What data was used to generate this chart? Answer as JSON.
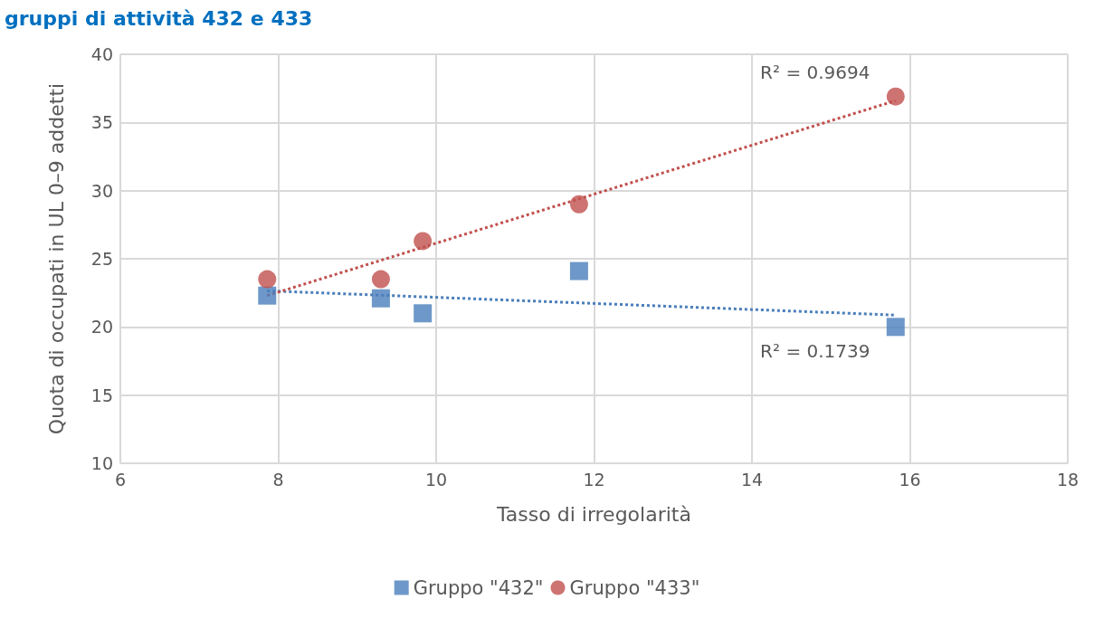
{
  "chart_data": {
    "type": "scatter",
    "title": "gruppi di attività 432 e 433",
    "xlabel": "Tasso di irregolarità",
    "ylabel": "Quota di occupati in UL 0–9 addetti",
    "xlim": [
      6,
      18
    ],
    "xticks": [
      6,
      8,
      10,
      12,
      14,
      16,
      18
    ],
    "ylim": [
      10,
      40
    ],
    "yticks": [
      10,
      15,
      20,
      25,
      30,
      35,
      40
    ],
    "grid": true,
    "legend": "bottom",
    "series": [
      {
        "name": "Gruppo \"432\"",
        "color": "#4a7ebb",
        "marker": "square",
        "x": [
          7.86,
          9.3,
          9.83,
          11.81,
          15.82
        ],
        "values": [
          22.3,
          22.1,
          21.0,
          24.1,
          20.0
        ]
      },
      {
        "name": "Gruppo \"433\"",
        "color": "#c0504d",
        "marker": "circle",
        "x": [
          7.86,
          9.3,
          9.83,
          11.81,
          15.82
        ],
        "values": [
          23.5,
          23.5,
          26.3,
          29.0,
          36.9
        ]
      },
      {
        "type": "line",
        "color": "#4a7ebb",
        "line_style": "dotted",
        "marker": "none",
        "x": [
          7.86,
          15.82
        ],
        "values": [
          22.65,
          20.87
        ]
      },
      {
        "type": "line",
        "color": "#c0504d",
        "line_style": "dotted",
        "marker": "none",
        "x": [
          7.86,
          15.82
        ],
        "values": [
          22.3,
          36.6
        ]
      }
    ],
    "annotations": [
      "R² = 0.9694",
      "R² = 0.1739"
    ]
  }
}
